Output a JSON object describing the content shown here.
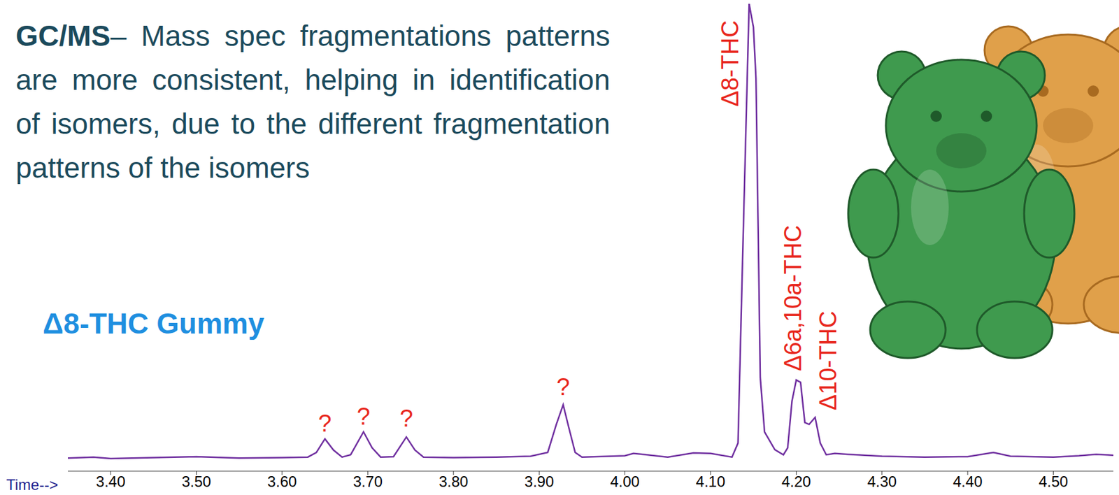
{
  "chart_data": {
    "type": "line",
    "title": "Δ8-THC Gummy",
    "description": {
      "bold": "GC/MS",
      "text": "– Mass spec fragmentations patterns are more consistent, helping in identification of isomers, due to the different fragmentation patterns of the isomers"
    },
    "xlabel": "Time-->",
    "x": [
      3.35,
      3.38,
      3.4,
      3.45,
      3.5,
      3.55,
      3.6,
      3.63,
      3.64,
      3.65,
      3.66,
      3.67,
      3.68,
      3.695,
      3.705,
      3.715,
      3.73,
      3.745,
      3.755,
      3.765,
      3.8,
      3.85,
      3.89,
      3.91,
      3.92,
      3.928,
      3.935,
      3.942,
      3.95,
      4.0,
      4.01,
      4.05,
      4.08,
      4.1,
      4.125,
      4.132,
      4.138,
      4.145,
      4.15,
      4.153,
      4.158,
      4.163,
      4.175,
      4.185,
      4.19,
      4.195,
      4.2,
      4.205,
      4.21,
      4.215,
      4.222,
      4.228,
      4.235,
      4.245,
      4.26,
      4.3,
      4.35,
      4.4,
      4.43,
      4.45,
      4.5,
      4.53,
      4.55,
      4.57
    ],
    "values": [
      2.8,
      3.0,
      2.7,
      2.9,
      3.1,
      2.8,
      2.9,
      3.0,
      4.0,
      6.9,
      4.5,
      3.0,
      3.5,
      8.4,
      5.0,
      3.0,
      3.1,
      7.3,
      4.5,
      3.0,
      2.9,
      3.0,
      3.2,
      4.0,
      10.0,
      14.2,
      9.0,
      4.0,
      3.0,
      3.3,
      3.8,
      3.0,
      3.9,
      3.8,
      3.0,
      6.0,
      50,
      100,
      95,
      84,
      20,
      8.4,
      4.6,
      3.5,
      5.0,
      15,
      19.5,
      19,
      10.4,
      10.0,
      11.5,
      6,
      3.5,
      3.8,
      3.6,
      3.2,
      3.0,
      3.1,
      4.0,
      3.2,
      3.0,
      3.3,
      3.6,
      3.4
    ],
    "color": "#7030a0",
    "xlim": [
      3.35,
      4.57
    ],
    "xticks": [
      {
        "value": 3.4,
        "label": "3.40"
      },
      {
        "value": 3.5,
        "label": "3.50"
      },
      {
        "value": 3.6,
        "label": "3.60"
      },
      {
        "value": 3.7,
        "label": "3.70"
      },
      {
        "value": 3.8,
        "label": "3.80"
      },
      {
        "value": 3.9,
        "label": "3.90"
      },
      {
        "value": 4.0,
        "label": "4.00"
      },
      {
        "value": 4.1,
        "label": "4.10"
      },
      {
        "value": 4.2,
        "label": "4.20"
      },
      {
        "value": 4.3,
        "label": "4.30"
      },
      {
        "value": 4.4,
        "label": "4.40"
      },
      {
        "value": 4.5,
        "label": "4.50"
      }
    ],
    "ylim": [
      0,
      100
    ],
    "tick_labels": "x",
    "grid": false,
    "annotations": [
      {
        "x": 3.65,
        "y": 8.5,
        "text": "?",
        "color": "#e8261c"
      },
      {
        "x": 3.695,
        "y": 10,
        "text": "?",
        "color": "#e8261c"
      },
      {
        "x": 3.745,
        "y": 9.5,
        "text": "?",
        "color": "#e8261c"
      },
      {
        "x": 3.928,
        "y": 16.3,
        "text": "?",
        "color": "#e8261c"
      },
      {
        "x": 4.1225,
        "y": 78,
        "text": "Δ8-THC",
        "color": "#e8261c"
      },
      {
        "x": 4.196,
        "y": 21.4,
        "text": "Δ6a,10a-THC",
        "color": "#e8261c"
      },
      {
        "x": 4.2375,
        "y": 13,
        "text": "Δ10-THC",
        "color": "#e8261c"
      }
    ]
  }
}
